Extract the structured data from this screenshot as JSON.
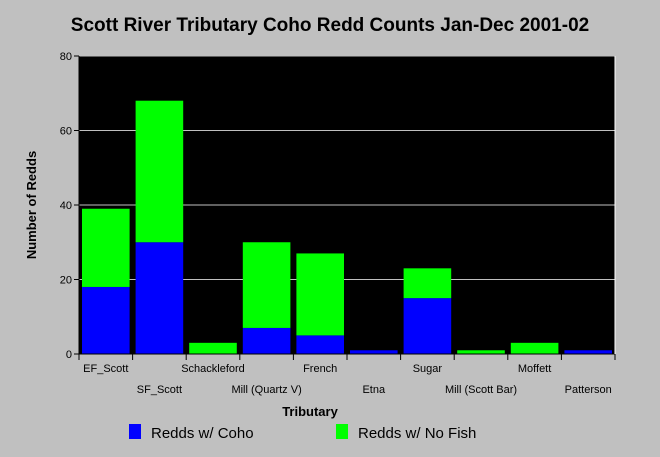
{
  "chart_data": {
    "type": "bar",
    "stacked": true,
    "title": "Scott River Tributary Coho Redd Counts Jan-Dec 2001-02",
    "xlabel": "Tributary",
    "ylabel": "Number of Redds",
    "ylim": [
      0,
      80
    ],
    "yticks": [
      0,
      20,
      40,
      60,
      80
    ],
    "grid": true,
    "legend_position": "bottom",
    "categories": [
      "EF_Scott",
      "SF_Scott",
      "Schackleford",
      "Mill (Quartz V)",
      "French",
      "Etna",
      "Sugar",
      "Mill (Scott Bar)",
      "Moffett",
      "Patterson"
    ],
    "series": [
      {
        "name": "Redds w/ Coho",
        "color": "#0000ff",
        "values": [
          18,
          30,
          0,
          7,
          5,
          1,
          15,
          0,
          0,
          1
        ]
      },
      {
        "name": "Redds w/ No Fish",
        "color": "#00ff00",
        "values": [
          21,
          38,
          3,
          23,
          22,
          0,
          8,
          1,
          3,
          0
        ]
      }
    ]
  }
}
